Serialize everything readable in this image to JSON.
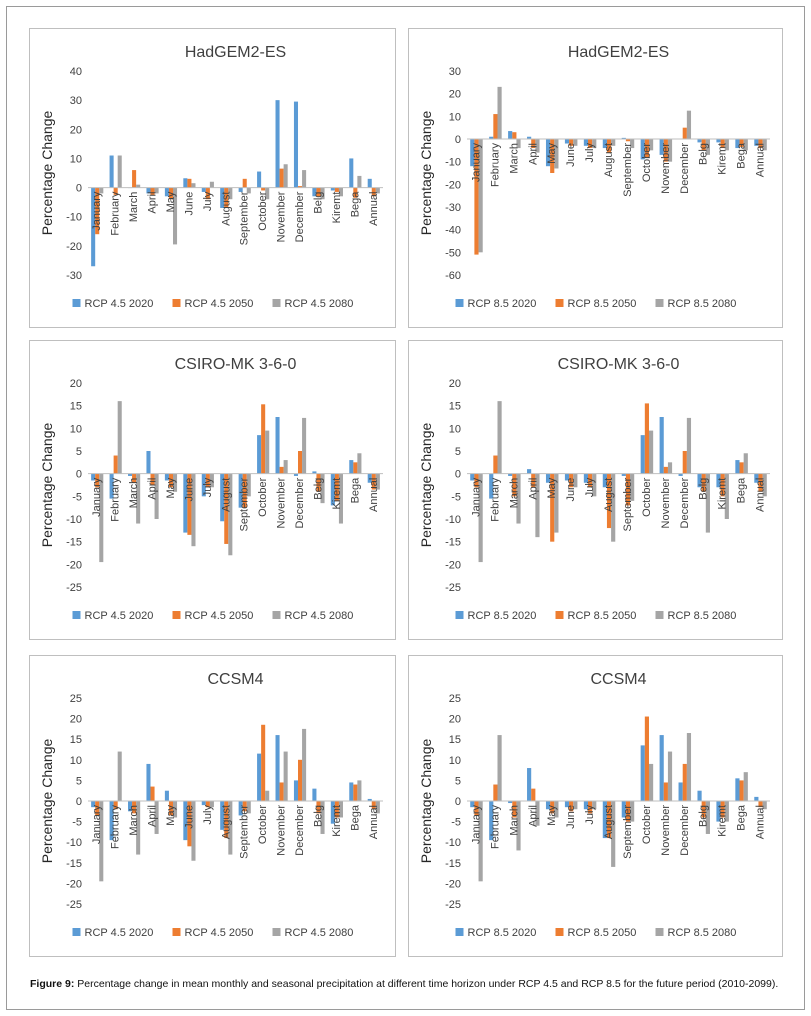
{
  "caption": {
    "label": "Figure 9:",
    "text": " Percentage change in mean monthly and seasonal precipitation at different time horizon under RCP 4.5 and RCP 8.5 for the future period (2010-2099)."
  },
  "colors": {
    "s1": "#5b9bd5",
    "s2": "#ed7d31",
    "s3": "#a5a5a5"
  },
  "chart_data": [
    {
      "type": "bar",
      "title": "HadGEM2-ES",
      "ylabel": "Percentage Change",
      "ylim": [
        -30,
        40
      ],
      "yticks": [
        -30,
        -20,
        -10,
        0,
        10,
        20,
        30,
        40
      ],
      "categories": [
        "January",
        "February",
        "March",
        "April",
        "May",
        "June",
        "July",
        "August",
        "September",
        "October",
        "November",
        "December",
        "Belg",
        "Kiremt",
        "Bega",
        "Annual"
      ],
      "series": [
        {
          "name": "RCP 4.5 2020",
          "values": [
            -27,
            11,
            0,
            -2,
            -3,
            3.2,
            -1.5,
            -7,
            -1.5,
            5.5,
            30,
            29.5,
            -3,
            -1,
            10,
            3
          ]
        },
        {
          "name": "RCP 4.5 2050",
          "values": [
            -16,
            -2.5,
            6,
            -2.5,
            -4,
            3,
            -4,
            -7,
            3,
            -1,
            6.5,
            0.5,
            -3,
            -1.5,
            -3.5,
            -3
          ]
        },
        {
          "name": "RCP 4.5 2080",
          "values": [
            -2,
            11,
            1,
            -2,
            -19.5,
            1.5,
            2,
            -4,
            -2,
            -4,
            8,
            6,
            -4,
            -3,
            4,
            -2
          ]
        }
      ]
    },
    {
      "type": "bar",
      "title": "HadGEM2-ES",
      "ylabel": "Percentage Change",
      "ylim": [
        -60,
        30
      ],
      "yticks": [
        -60,
        -50,
        -40,
        -30,
        -20,
        -10,
        0,
        10,
        20,
        30
      ],
      "categories": [
        "January",
        "February",
        "March",
        "April",
        "May",
        "June",
        "July",
        "August",
        "September",
        "October",
        "November",
        "December",
        "Belg",
        "Kiremt",
        "Bega",
        "Annual"
      ],
      "series": [
        {
          "name": "RCP 8.5 2020",
          "values": [
            -12,
            1,
            3.5,
            1,
            -12,
            -2,
            -3,
            -4,
            0.5,
            -9,
            -7,
            0,
            -1.5,
            -1.5,
            -4,
            -3
          ]
        },
        {
          "name": "RCP 8.5 2050",
          "values": [
            -51,
            11,
            3,
            -4,
            -15,
            -3,
            -4,
            -6,
            -1,
            -8,
            -10,
            5,
            -5,
            -4,
            -3.5,
            -4
          ]
        },
        {
          "name": "RCP 8.5 2080",
          "values": [
            -50,
            23,
            -4,
            -6,
            -13,
            -3,
            -4,
            -3,
            -4,
            -5,
            -10,
            12.5,
            -7,
            -5,
            -5,
            -5
          ]
        }
      ]
    },
    {
      "type": "bar",
      "title": "CSIRO-MK 3-6-0",
      "ylabel": "Percentage Change",
      "ylim": [
        -25,
        20
      ],
      "yticks": [
        -25,
        -20,
        -15,
        -10,
        -5,
        0,
        5,
        10,
        15,
        20
      ],
      "categories": [
        "January",
        "February",
        "March",
        "April",
        "May",
        "June",
        "July",
        "August",
        "September",
        "October",
        "November",
        "December",
        "Belg",
        "Kiremt",
        "Bega",
        "Annual"
      ],
      "series": [
        {
          "name": "RCP 4.5 2020",
          "values": [
            -1.5,
            -5.5,
            -0.5,
            5,
            -1.5,
            -13,
            -5,
            -10.5,
            -7.5,
            8.5,
            12.5,
            -0.5,
            0.5,
            -7,
            3,
            -2
          ]
        },
        {
          "name": "RCP 4.5 2050",
          "values": [
            -3,
            4,
            -2,
            -2.5,
            -3,
            -13.5,
            -3,
            -15.5,
            -7.5,
            15.3,
            1.5,
            5,
            -4,
            -6,
            2.5,
            -3.5
          ]
        },
        {
          "name": "RCP 4.5 2080",
          "values": [
            -19.5,
            16,
            -11,
            -10,
            -4,
            -16,
            -3,
            -18,
            -5,
            9.5,
            3,
            12.3,
            -6.5,
            -11,
            4.5,
            -3.5
          ]
        }
      ]
    },
    {
      "type": "bar",
      "title": "CSIRO-MK 3-6-0",
      "ylabel": "Percentage Change",
      "ylim": [
        -25,
        20
      ],
      "yticks": [
        -25,
        -20,
        -15,
        -10,
        -5,
        0,
        5,
        10,
        15,
        20
      ],
      "categories": [
        "January",
        "February",
        "March",
        "April",
        "May",
        "June",
        "July",
        "August",
        "September",
        "October",
        "November",
        "December",
        "Belg",
        "Kiremt",
        "Bega",
        "Annual"
      ],
      "series": [
        {
          "name": "RCP 8.5 2020",
          "values": [
            -1.5,
            -5.5,
            -0.5,
            1,
            -2,
            -1.5,
            -2,
            -3,
            -0.5,
            8.5,
            12.5,
            -0.5,
            -3,
            -3,
            3,
            -2
          ]
        },
        {
          "name": "RCP 8.5 2050",
          "values": [
            -3,
            4,
            -5,
            -3,
            -15,
            -3,
            -3,
            -12,
            -7,
            15.5,
            1.5,
            5,
            -4,
            -5,
            2.5,
            -4
          ]
        },
        {
          "name": "RCP 8.5 2080",
          "values": [
            -19.5,
            16,
            -11,
            -14,
            -13,
            -3,
            -5,
            -15,
            -6,
            9.5,
            2.5,
            12.3,
            -13,
            -10,
            4.5,
            -5
          ]
        }
      ]
    },
    {
      "type": "bar",
      "title": "CCSM4",
      "ylabel": "Percentage Change",
      "ylim": [
        -25,
        25
      ],
      "yticks": [
        -25,
        -20,
        -15,
        -10,
        -5,
        0,
        5,
        10,
        15,
        20,
        25
      ],
      "categories": [
        "January",
        "February",
        "March",
        "April",
        "May",
        "June",
        "July",
        "August",
        "September",
        "October",
        "November",
        "December",
        "Belg",
        "Kiremt",
        "Bega",
        "Annual"
      ],
      "series": [
        {
          "name": "RCP 4.5 2020",
          "values": [
            -1.5,
            -9.5,
            -2.5,
            9,
            2.5,
            -9.5,
            -1,
            -7,
            -3.5,
            11.5,
            16,
            5,
            3,
            -5.5,
            4.5,
            0.5
          ]
        },
        {
          "name": "RCP 4.5 2050",
          "values": [
            -3.5,
            -2,
            -3,
            3.5,
            -3.5,
            -11,
            -1.5,
            -9,
            -2.5,
            18.5,
            4.5,
            10,
            -3,
            -4,
            4,
            -2
          ]
        },
        {
          "name": "RCP 4.5 2080",
          "values": [
            -19.5,
            12,
            -13,
            -8,
            -4,
            -14.5,
            -1.5,
            -13,
            -3,
            2.5,
            12,
            17.5,
            -8,
            -4,
            5,
            -3
          ]
        }
      ]
    },
    {
      "type": "bar",
      "title": "CCSM4",
      "ylabel": "Percentage Change",
      "ylim": [
        -25,
        25
      ],
      "yticks": [
        -25,
        -20,
        -15,
        -10,
        -5,
        0,
        5,
        10,
        15,
        20,
        25
      ],
      "categories": [
        "January",
        "February",
        "March",
        "April",
        "May",
        "June",
        "July",
        "August",
        "September",
        "October",
        "November",
        "December",
        "Belg",
        "Kiremt",
        "Bega",
        "Annual"
      ],
      "series": [
        {
          "name": "RCP 8.5 2020",
          "values": [
            -1.5,
            -9.5,
            -0.5,
            8,
            -2,
            -1.5,
            -2,
            -9,
            -4,
            13.5,
            16,
            4.5,
            2.5,
            -5,
            5.5,
            1
          ]
        },
        {
          "name": "RCP 8.5 2050",
          "values": [
            -3.5,
            4,
            -4,
            3,
            -3,
            -2.5,
            -3,
            -9,
            -5,
            20.5,
            4.5,
            9,
            -4,
            -4,
            5,
            -1.5
          ]
        },
        {
          "name": "RCP 8.5 2080",
          "values": [
            -19.5,
            16,
            -12,
            -6,
            -4,
            -2,
            -2,
            -16,
            -5,
            9,
            12,
            16.5,
            -8,
            -5,
            7,
            -2
          ]
        }
      ]
    }
  ]
}
